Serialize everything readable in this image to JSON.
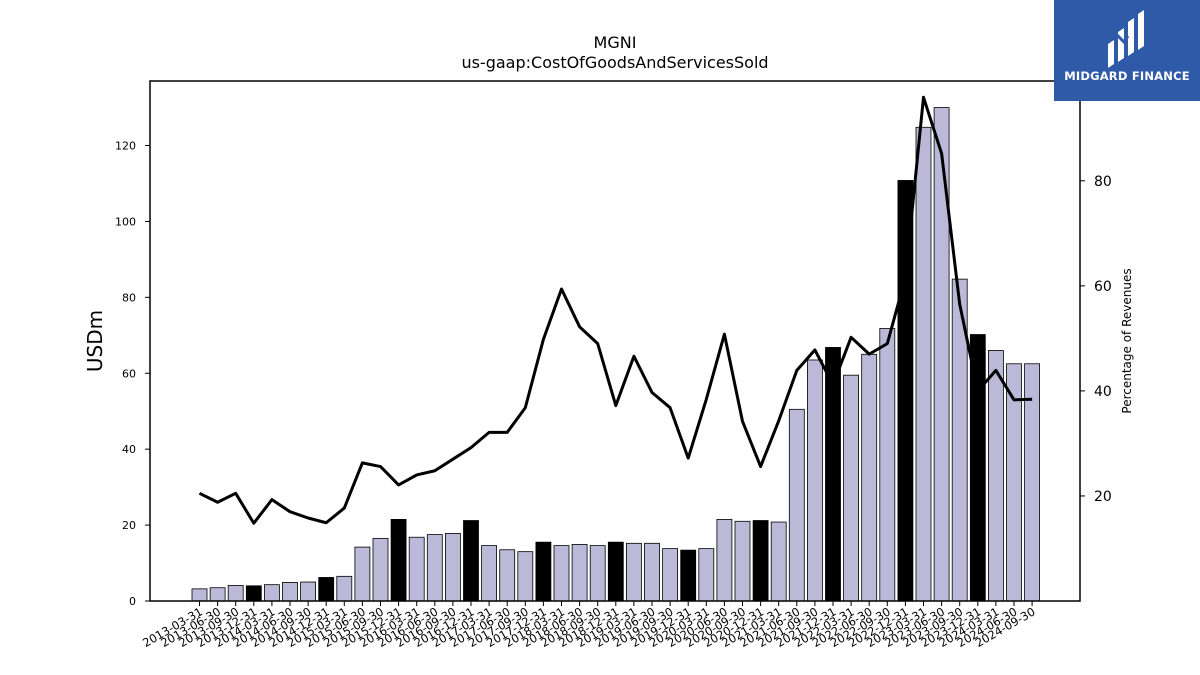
{
  "title": "MGNI",
  "subtitle": "us-gaap:CostOfGoodsAndServicesSold",
  "logo_text": "MIDGARD FINANCE",
  "colors": {
    "bar_default": "#bcb9d8",
    "bar_highlight": "#000000",
    "line": "#000000"
  },
  "chart_data": {
    "type": "bar",
    "categories": [
      "2013-03-31",
      "2013-06-30",
      "2013-09-30",
      "2013-12-31",
      "2014-03-31",
      "2014-06-30",
      "2014-09-30",
      "2014-12-31",
      "2015-03-31",
      "2015-06-30",
      "2015-09-30",
      "2015-12-31",
      "2016-03-31",
      "2016-06-30",
      "2016-09-30",
      "2016-12-31",
      "2017-03-31",
      "2017-06-30",
      "2017-09-30",
      "2017-12-31",
      "2018-03-31",
      "2018-06-30",
      "2018-09-30",
      "2018-12-31",
      "2019-03-31",
      "2019-06-30",
      "2019-09-30",
      "2019-12-31",
      "2020-03-31",
      "2020-06-30",
      "2020-09-30",
      "2020-12-31",
      "2021-03-31",
      "2021-06-30",
      "2021-09-30",
      "2021-12-31",
      "2022-03-31",
      "2022-06-30",
      "2022-09-30",
      "2022-12-31",
      "2023-03-31",
      "2023-06-30",
      "2023-09-30",
      "2023-12-31",
      "2024-03-31",
      "2024-06-30",
      "2024-09-30"
    ],
    "series": [
      {
        "axis": "left",
        "values": [
          3.2,
          3.5,
          4.1,
          4.0,
          4.3,
          4.9,
          5.0,
          6.2,
          6.5,
          14.2,
          16.5,
          21.5,
          16.8,
          17.5,
          17.8,
          21.2,
          14.6,
          13.5,
          13.0,
          15.5,
          14.6,
          14.9,
          14.6,
          15.5,
          15.2,
          15.2,
          13.8,
          13.4,
          13.8,
          21.5,
          21.0,
          21.2,
          20.8,
          50.5,
          63.5,
          66.8,
          59.5,
          65.0,
          71.8,
          110.8,
          124.8,
          130.0,
          84.8,
          70.2,
          66.0,
          62.5,
          62.5
        ],
        "highlight": [
          false,
          false,
          false,
          true,
          false,
          false,
          false,
          true,
          false,
          false,
          false,
          true,
          false,
          false,
          false,
          true,
          false,
          false,
          false,
          true,
          false,
          false,
          false,
          true,
          false,
          false,
          false,
          true,
          false,
          false,
          false,
          true,
          false,
          false,
          false,
          true,
          false,
          false,
          false,
          true,
          false,
          false,
          false,
          true,
          false,
          false,
          false
        ]
      },
      {
        "axis": "right",
        "type": "line",
        "values": [
          20.5,
          18.8,
          20.5,
          14.8,
          19.3,
          17.0,
          15.8,
          14.9,
          17.7,
          26.3,
          25.6,
          22.1,
          24.0,
          24.8,
          27.0,
          29.2,
          32.1,
          32.1,
          36.8,
          49.8,
          59.4,
          52.2,
          49.0,
          37.2,
          46.6,
          39.7,
          36.8,
          27.2,
          38.4,
          50.8,
          34.2,
          25.6,
          34.3,
          43.9,
          47.8,
          41.2,
          50.2,
          47.0,
          49.0,
          61.6,
          95.9,
          85.2,
          56.5,
          40.0,
          43.9,
          38.3,
          38.4
        ]
      }
    ],
    "ylabel": "USDm",
    "ylim": [
      0,
      137
    ],
    "yticks": [
      0,
      20,
      40,
      60,
      80,
      100,
      120
    ],
    "ylabel_right": "Percentage of Revenues",
    "ylim_right": [
      0,
      99
    ],
    "yticks_right": [
      20,
      40,
      60,
      80
    ],
    "grid": false
  }
}
